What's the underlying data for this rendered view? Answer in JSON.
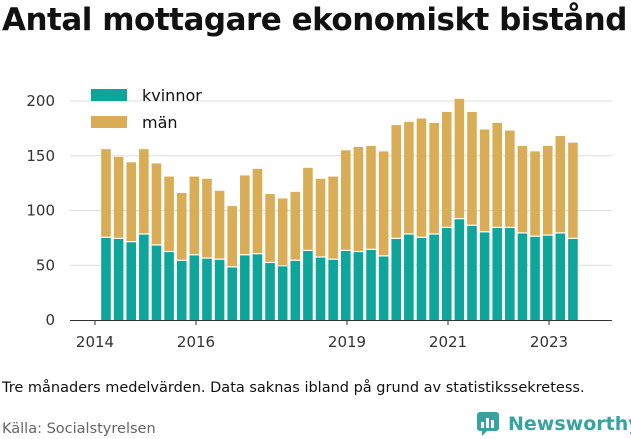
{
  "title": "Antal mottagare ekonomiskt bistånd",
  "note": "Tre månaders medelvärden. Data saknas ibland på grund av statistikssekretess.",
  "source": "Källa: Socialstyrelsen",
  "brand": "Newsworthy",
  "colors": {
    "kvinnor": "#0ea59b",
    "man": "#d8ad55",
    "brand": "#37a3a0",
    "grid": "#dddddd"
  },
  "chart_data": {
    "type": "bar",
    "stacked": true,
    "x_ticks": [
      "2014",
      "2016",
      "2019",
      "2021",
      "2023"
    ],
    "y_ticks": [
      0,
      50,
      100,
      150,
      200
    ],
    "ylim": [
      0,
      200
    ],
    "grid": true,
    "legend_position": "top-left",
    "series": [
      {
        "name": "kvinnor",
        "values": [
          75,
          74,
          71,
          78,
          68,
          62,
          54,
          59,
          56,
          55,
          48,
          59,
          60,
          52,
          49,
          54,
          63,
          57,
          55,
          63,
          62,
          64,
          58,
          74,
          78,
          75,
          78,
          84,
          92,
          86,
          80,
          84,
          84,
          79,
          76,
          77,
          79,
          74
        ]
      },
      {
        "name": "män",
        "values": [
          81,
          75,
          73,
          78,
          75,
          69,
          62,
          72,
          73,
          63,
          56,
          73,
          78,
          63,
          62,
          63,
          76,
          72,
          76,
          92,
          96,
          95,
          96,
          104,
          103,
          109,
          102,
          106,
          110,
          104,
          94,
          96,
          89,
          80,
          78,
          82,
          89,
          88
        ]
      }
    ]
  }
}
